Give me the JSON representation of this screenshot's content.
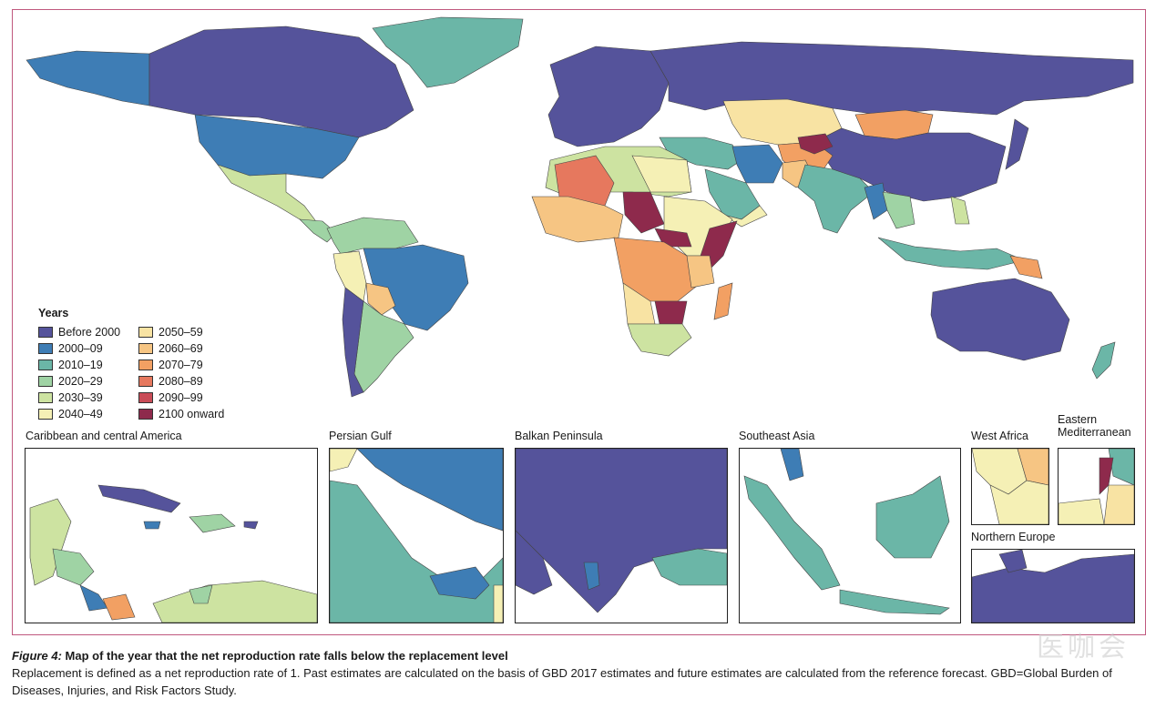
{
  "legend": {
    "title": "Years",
    "items": [
      {
        "label": "Before 2000",
        "color": "#55539b"
      },
      {
        "label": "2000–09",
        "color": "#3e7db5"
      },
      {
        "label": "2010–19",
        "color": "#6bb6a7"
      },
      {
        "label": "2020–29",
        "color": "#9fd3a4"
      },
      {
        "label": "2030–39",
        "color": "#cde3a1"
      },
      {
        "label": "2040–49",
        "color": "#f5f0b5"
      },
      {
        "label": "2050–59",
        "color": "#f8e3a3"
      },
      {
        "label": "2060–69",
        "color": "#f6c583"
      },
      {
        "label": "2070–79",
        "color": "#f2a063"
      },
      {
        "label": "2080–89",
        "color": "#e6785e"
      },
      {
        "label": "2090–99",
        "color": "#c94c57"
      },
      {
        "label": "2100 onward",
        "color": "#8e2a4c"
      }
    ]
  },
  "insets": {
    "caribbean": "Caribbean and central America",
    "persian_gulf": "Persian Gulf",
    "balkan": "Balkan Peninsula",
    "southeast_asia": "Southeast Asia",
    "west_africa": "West Africa",
    "eastern_med": "Eastern Mediterranean",
    "northern_europe": "Northern Europe"
  },
  "caption": {
    "label": "Figure 4:",
    "title": "Map of the year that the net reproduction rate falls below the replacement level",
    "body": "Replacement is defined as a net reproduction rate of 1. Past estimates are calculated on the basis of GBD 2017 estimates and future estimates are calculated from the reference forecast. GBD=Global Burden of Diseases, Injuries, and Risk Factors Study."
  },
  "watermark": "医咖会"
}
